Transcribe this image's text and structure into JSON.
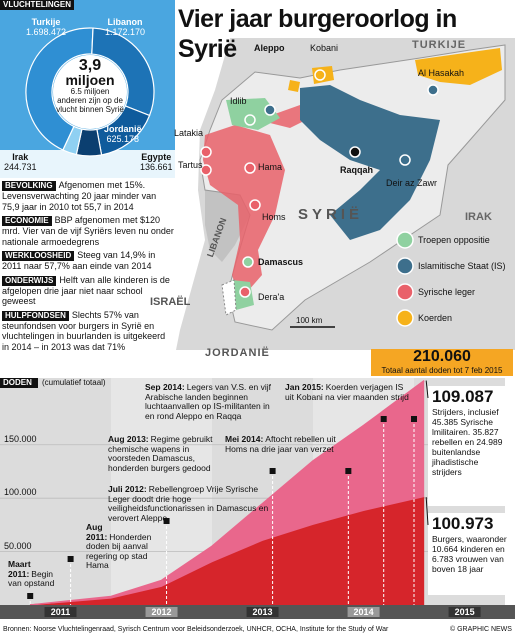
{
  "header": {
    "title": "Vier jaar burgeroorlog in Syrië"
  },
  "refugees": {
    "title": "VLUCHTELINGEN",
    "items": [
      {
        "name": "Turkije",
        "value": 1698472,
        "label": "1.698.472",
        "color": "#2f8fd3"
      },
      {
        "name": "Libanon",
        "value": 1172170,
        "label": "1.172.170",
        "color": "#1d73b6"
      },
      {
        "name": "Jordanië",
        "value": 625178,
        "label": "625.178",
        "color": "#0f5b9c"
      },
      {
        "name": "Irak",
        "value": 244731,
        "label": "244.731",
        "color": "#0b3f70"
      },
      {
        "name": "Egypte",
        "value": 136661,
        "label": "136.661",
        "color": "#8fd0f2"
      }
    ],
    "total": "3,9",
    "total_unit": "miljoen",
    "internal": "6.5 miljoen",
    "internal_text": "anderen zijn op de vlucht binnen Syrië"
  },
  "facts": [
    {
      "heading": "BEVOLKING",
      "text": "Afgenomen met 15%. Levensverwachting 20 jaar minder van 75,9 jaar in 2010 tot 55,7 in 2014"
    },
    {
      "heading": "ECONOMIE",
      "text": "BBP afgenomen met $120 mrd. Vier van de vijf Syriërs leven nu onder nationale armoedegrens"
    },
    {
      "heading": "WERKLOOSHEID",
      "text": "Steeg van 14,9% in 2011 naar 57,7% aan einde van 2014"
    },
    {
      "heading": "ONDERWIJS",
      "text": "Helft van alle kinderen is de afgelopen drie jaar niet naar school geweest"
    },
    {
      "heading": "HULPFONDSEN",
      "text": "Slechts 57% van steunfondsen voor burgers in Syrië en vluchtelingen in buurlanden is uitgekeerd in 2014 – in 2013 was dat 71%"
    }
  ],
  "map": {
    "labels": [
      "TURKIJE",
      "Aleppo",
      "Kobani",
      "Al Hasakah",
      "Idlib",
      "Latakia",
      "Raqqah",
      "Tartus",
      "Hama",
      "Deir az Zawr",
      "Homs",
      "SYRIË",
      "IRAK",
      "LIBANON",
      "Damascus",
      "Dera'a",
      "ISRAËL",
      "JORDANIË"
    ],
    "scale": "100 km",
    "legend": [
      {
        "name": "Troepen oppositie",
        "color": "#8fd1a0"
      },
      {
        "name": "Islamitische Staat (IS)",
        "color": "#3d6f8c"
      },
      {
        "name": "Syrische leger",
        "color": "#e9616a"
      },
      {
        "name": "Koerden",
        "color": "#f6b21a"
      }
    ]
  },
  "total": {
    "value": "210.060",
    "text": "Totaal aantal doden tot 7 feb 2015"
  },
  "chart_data": {
    "type": "area",
    "stacked": true,
    "title": "DODEN",
    "subtitle": "(cumulatief totaal)",
    "x": [
      2011.2,
      2011.5,
      2012.0,
      2012.5,
      2013.0,
      2013.5,
      2014.0,
      2014.5,
      2015.1
    ],
    "xlim": [
      2011,
      2015.9
    ],
    "xticks": [
      {
        "value": 2011.5,
        "label": "2011"
      },
      {
        "value": 2012.5,
        "label": "2012"
      },
      {
        "value": 2013.5,
        "label": "2013"
      },
      {
        "value": 2014.5,
        "label": "2014"
      },
      {
        "value": 2015.5,
        "label": "2015"
      }
    ],
    "ylim": [
      0,
      212500
    ],
    "yticks": [
      {
        "value": 50000,
        "label": "50.000"
      },
      {
        "value": 100000,
        "label": "100.000"
      },
      {
        "value": 150000,
        "label": "150.000"
      }
    ],
    "grid": true,
    "series": [
      {
        "name": "Burgers",
        "color": "#d6252b",
        "values": [
          0,
          2000,
          6000,
          17000,
          40000,
          60000,
          75000,
          88000,
          100973
        ],
        "value_labels": [
          null,
          null,
          null,
          null,
          null,
          null,
          null,
          null,
          "100.973"
        ],
        "note": ", waaronder 10.664 kinderen en 6.783 vrouwen van boven 18 jaar"
      },
      {
        "name": "Strijders",
        "color": "#e9678c",
        "values": [
          0,
          1000,
          2000,
          6000,
          15000,
          35000,
          60000,
          80000,
          109087
        ],
        "value_labels": [
          null,
          null,
          null,
          null,
          null,
          null,
          null,
          null,
          "109.087"
        ],
        "note": ", inclusief 45.385 Syrische lmilitairen. 35.827 rebellen en 24.989 buitenlandse jihadistische strijders"
      }
    ],
    "annotations": [
      {
        "date": "Sep 2014:",
        "text": "Legers van V.S. en vijf Arabische landen beginnen luchtaanvallen op IS-militanten in en rond Aleppo en Raqqa"
      },
      {
        "date": "Jan 2015:",
        "text": "Koerden verjagen IS uit Kobani na vier maanden strijd"
      },
      {
        "date": "Aug 2013:",
        "text": "Regime gebruikt chemische wapens in voorsteden Damascus, honderden burgers gedood"
      },
      {
        "date": "Mei 2014:",
        "text": "Aftocht rebellen uit Homs na drie jaar van verzet"
      },
      {
        "date": "Juli 2012:",
        "text": "Rebellengroep Vrije Syrische Leger doodt drie hoge veiligheidsfunctionarissen in Damascus en verovert Aleppo"
      },
      {
        "date": "Aug 2011:",
        "text": "Honderden doden bij aanval regering op stad Hama"
      },
      {
        "date": "Maart 2011:",
        "text": "Begin van opstand"
      }
    ]
  },
  "footer": {
    "source": "Bronnen: Noorse Vluchtelingenraad, Syrisch Centrum voor Beleidsonderzoek, UNHCR, OCHA, Institute for the Study of War",
    "credit": "© GRAPHIC NEWS"
  }
}
